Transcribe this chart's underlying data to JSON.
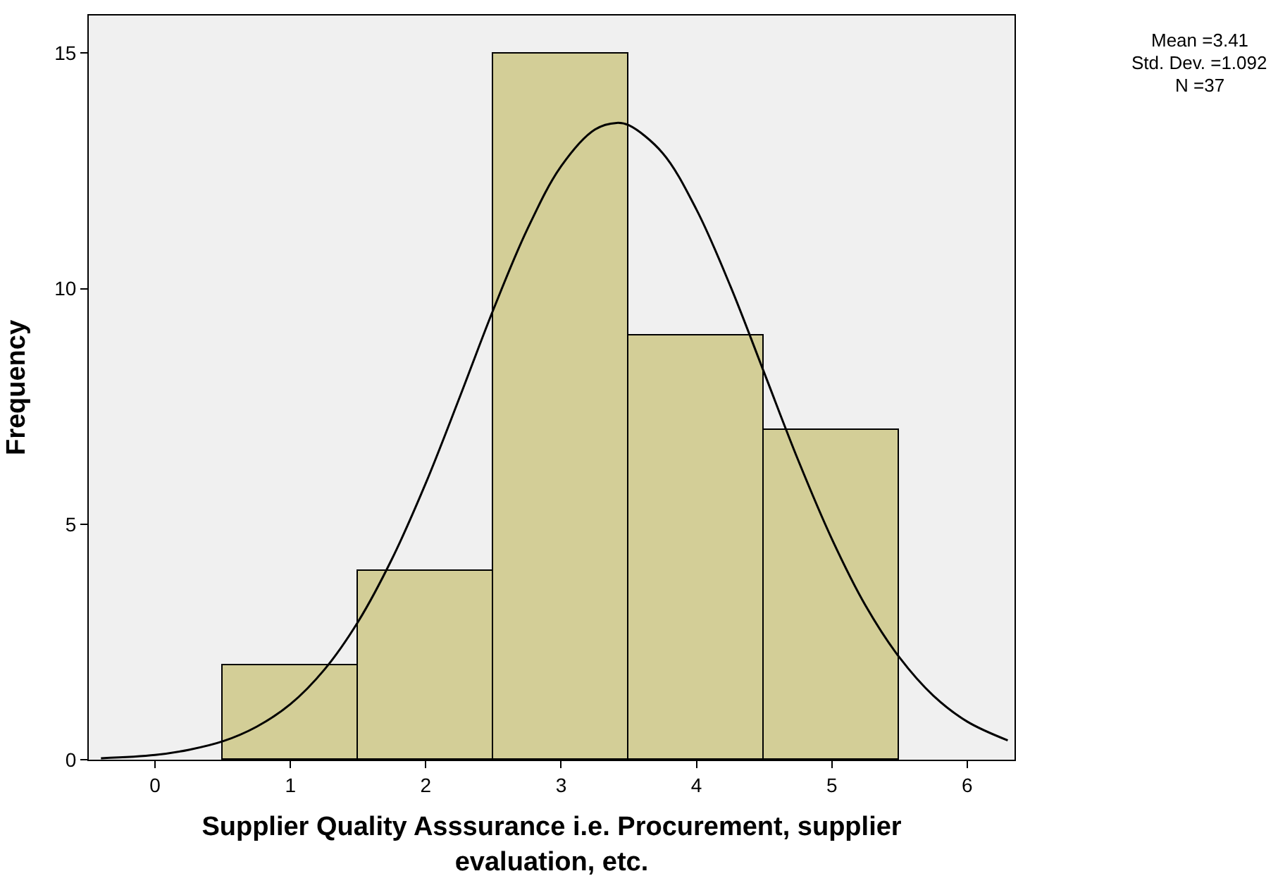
{
  "chart_data": {
    "type": "histogram",
    "xlabel": "Supplier Quality Asssurance i.e. Procurement, supplier evaluation, etc.",
    "ylabel": "Frequency",
    "bins": [
      0.5,
      1.5,
      2.5,
      3.5,
      4.5,
      5.5
    ],
    "values": [
      2,
      4,
      15,
      9,
      7
    ],
    "color": "#d3ce97",
    "series": [
      {
        "type": "line",
        "color": "#000000",
        "x": [
          -0.4,
          0,
          0.25,
          0.5,
          0.75,
          1,
          1.25,
          1.5,
          1.75,
          2,
          2.25,
          2.5,
          2.75,
          3,
          3.25,
          3.41,
          3.5,
          3.75,
          4,
          4.25,
          4.5,
          4.75,
          5,
          5.25,
          5.5,
          5.75,
          6,
          6.3
        ],
        "values": [
          0.03,
          0.1,
          0.21,
          0.39,
          0.7,
          1.18,
          1.91,
          2.93,
          4.26,
          5.87,
          7.69,
          9.56,
          11.26,
          12.6,
          13.38,
          13.52,
          13.47,
          12.88,
          11.68,
          10.06,
          8.22,
          6.37,
          4.69,
          3.27,
          2.17,
          1.36,
          0.81,
          0.41
        ]
      }
    ],
    "xlim": [
      -0.49,
      6.35
    ],
    "xticks": [
      0,
      1,
      2,
      3,
      4,
      5,
      6
    ],
    "ylim": [
      0,
      15.8
    ],
    "yticks": [
      0,
      5,
      10,
      15
    ],
    "grid": false,
    "annotations": [
      "Mean =3.41",
      "Std. Dev. =1.092",
      "N =37"
    ]
  }
}
